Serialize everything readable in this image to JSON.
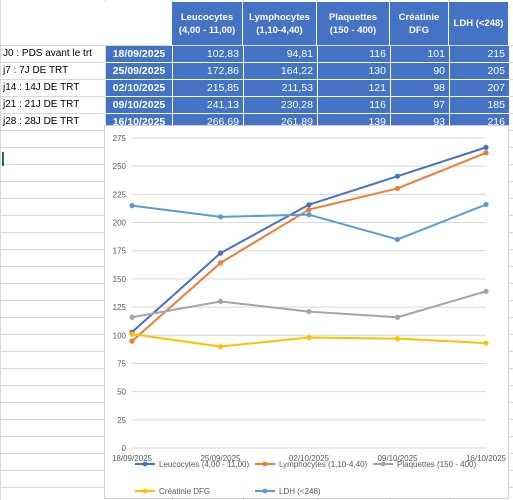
{
  "table": {
    "headers": [
      {
        "line1": "Leucocytes",
        "line2": "(4,00 - 11,00)"
      },
      {
        "line1": "Lymphocytes",
        "line2": "(1,10-4,40)"
      },
      {
        "line1": "Plaquettes",
        "line2": "(150 - 400)"
      },
      {
        "line1": "Créatinie",
        "line2": "DFG"
      },
      {
        "line1": "LDH (<248)",
        "line2": ""
      }
    ],
    "rows": [
      {
        "label": "J0 : PDS avant le trt",
        "date": "18/09/2025",
        "values": [
          "102,83",
          "94,81",
          "116",
          "101",
          "215"
        ]
      },
      {
        "label": "j7 : 7J DE TRT",
        "date": "25/09/2025",
        "values": [
          "172,86",
          "164,22",
          "130",
          "90",
          "205"
        ]
      },
      {
        "label": "j14 : 14J DE TRT",
        "date": "02/10/2025",
        "values": [
          "215,85",
          "211,53",
          "121",
          "98",
          "207"
        ]
      },
      {
        "label": "j21 : 21J DE TRT",
        "date": "09/10/2025",
        "values": [
          "241,13",
          "230,28",
          "116",
          "97",
          "185"
        ]
      },
      {
        "label": "j28 : 28J DE TRT",
        "date": "16/10/2025",
        "values": [
          "266,69",
          "261,89",
          "139",
          "93",
          "216"
        ]
      }
    ]
  },
  "chart_data": {
    "type": "line",
    "x": [
      "18/09/2025",
      "25/09/2025",
      "02/10/2025",
      "09/10/2025",
      "16/10/2025"
    ],
    "ylim": [
      0,
      275
    ],
    "yticks": [
      0,
      25,
      50,
      75,
      100,
      125,
      150,
      175,
      200,
      225,
      250,
      275
    ],
    "grid": true,
    "legend": "bottom",
    "series": [
      {
        "name": "Leucocytes (4,00 - 11,00)",
        "color": "#4472c4",
        "values": [
          102.83,
          172.86,
          215.85,
          241.13,
          266.69
        ]
      },
      {
        "name": "Lymphocytes (1,10-4,40)",
        "color": "#ed7d31",
        "values": [
          94.81,
          164.22,
          211.53,
          230.28,
          261.89
        ]
      },
      {
        "name": "Plaquettes (150 - 400)",
        "color": "#a5a5a5",
        "values": [
          116,
          130,
          121,
          116,
          139
        ]
      },
      {
        "name": "Créatinie DFG",
        "color": "#ffc000",
        "values": [
          101,
          90,
          98,
          97,
          93
        ]
      },
      {
        "name": "LDH (<248)",
        "color": "#5b9bd5",
        "values": [
          215,
          205,
          207,
          185,
          216
        ]
      }
    ]
  }
}
